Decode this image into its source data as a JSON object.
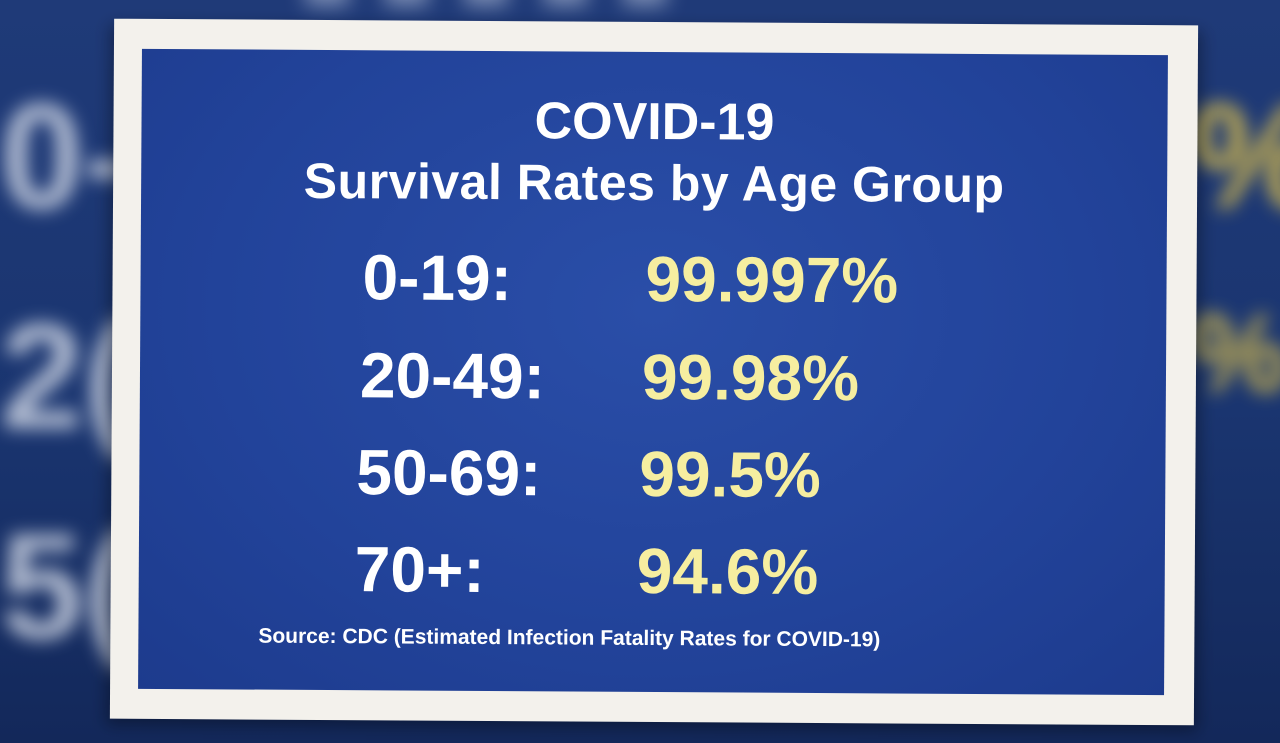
{
  "background": {
    "blurred_labels": [
      "0-",
      "2(",
      "5("
    ],
    "blurred_values": [
      "%",
      "%"
    ],
    "colors": {
      "backdrop": "#1f3a78",
      "blurred_value": "#e8c84a"
    }
  },
  "slide": {
    "title_line1": "COVID-19",
    "title_line2": "Survival Rates by Age Group",
    "rows": [
      {
        "age": "0-19:",
        "rate": "99.997%"
      },
      {
        "age": "20-49:",
        "rate": "99.98%"
      },
      {
        "age": "50-69:",
        "rate": "99.5%"
      },
      {
        "age": "70+:",
        "rate": "94.6%"
      }
    ],
    "source": "Source: CDC (Estimated Infection Fatality Rates for COVID-19)",
    "colors": {
      "panel": "#22439a",
      "frame": "#f3f1ec",
      "text": "#ffffff",
      "rate": "#f6eea0"
    }
  }
}
